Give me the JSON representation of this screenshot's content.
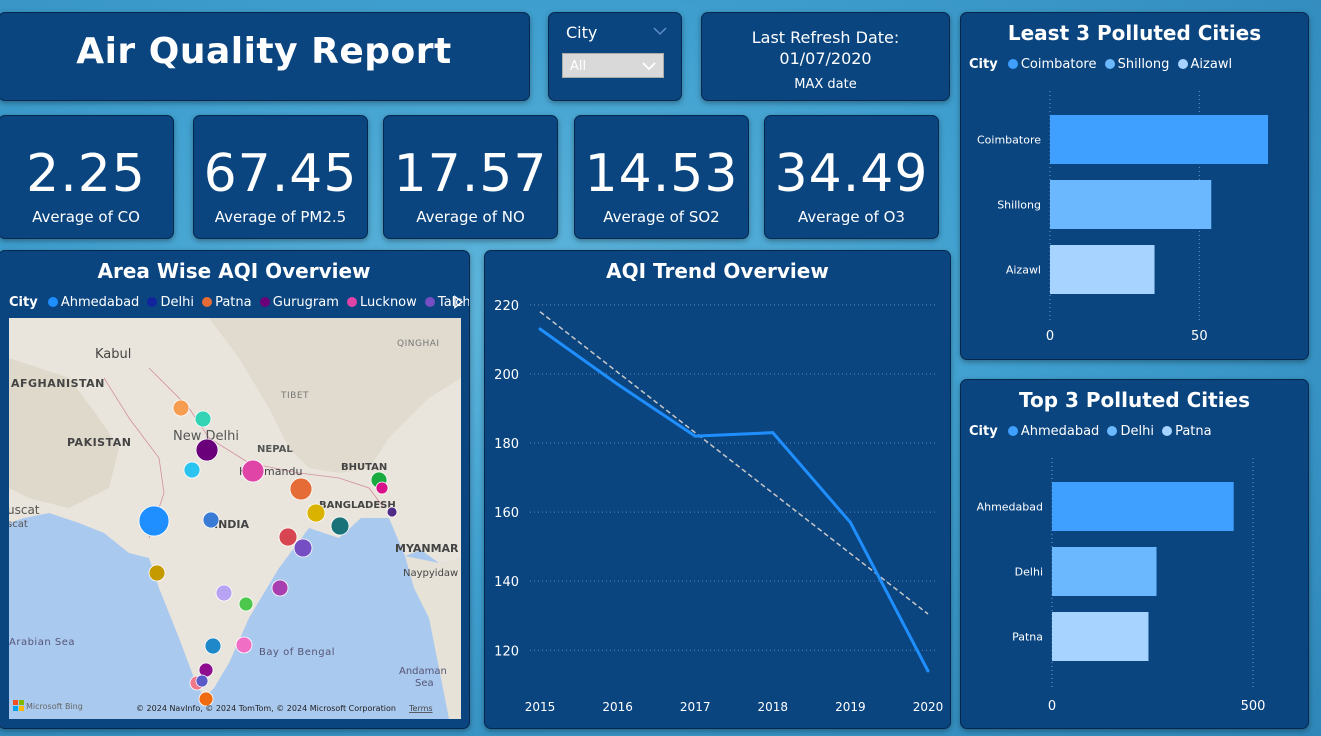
{
  "header": {
    "title": "Air Quality Report"
  },
  "slicer": {
    "label": "City",
    "value": "All"
  },
  "refresh": {
    "title": "Last Refresh Date:",
    "date": "01/07/2020",
    "sub": "MAX date"
  },
  "kpis": [
    {
      "value": "2.25",
      "label": "Average of CO"
    },
    {
      "value": "67.45",
      "label": "Average of PM2.5"
    },
    {
      "value": "17.57",
      "label": "Average of NO"
    },
    {
      "value": "14.53",
      "label": "Average of SO2"
    },
    {
      "value": "34.49",
      "label": "Average of O3"
    }
  ],
  "map_panel": {
    "title": "Area Wise AQI Overview",
    "legend_label": "City",
    "legend": [
      {
        "name": "Ahmedabad",
        "color": "#1f8fff"
      },
      {
        "name": "Delhi",
        "color": "#12239e"
      },
      {
        "name": "Patna",
        "color": "#e66c37"
      },
      {
        "name": "Gurugram",
        "color": "#6b007b"
      },
      {
        "name": "Lucknow",
        "color": "#e044a7"
      },
      {
        "name": "Talcher",
        "color": "#744ec2"
      }
    ],
    "map_labels": {
      "kabul": "Kabul",
      "afghanistan": "AFGHANISTAN",
      "pakistan": "PAKISTAN",
      "new_delhi": "New Delhi",
      "nepal": "NEPAL",
      "kathmandu": "Kathmandu",
      "tibet": "TIBET",
      "qinghai": "QINGHAI",
      "bhutan": "BHUTAN",
      "bangladesh": "BANGLADESH",
      "india": "INDIA",
      "myanmar": "MYANMAR",
      "naypyidaw": "Naypyidaw",
      "uscat1": "uscat",
      "uscat2": "scat",
      "arabian_sea": "Arabian Sea",
      "bay_of_bengal": "Bay of Bengal",
      "andaman_sea_1": "Andaman",
      "andaman_sea_2": "Sea",
      "bing": "Microsoft Bing",
      "copyright": "© 2024 NavInfo, © 2024 TomTom, © 2024 Microsoft Corporation",
      "terms": "Terms"
    }
  },
  "chart_data": [
    {
      "type": "line",
      "title": "AQI Trend Overview",
      "x": [
        "2015",
        "2016",
        "2017",
        "2018",
        "2019",
        "2020"
      ],
      "series": [
        {
          "values": [
            213,
            197,
            182,
            183,
            157,
            114
          ],
          "color": "#1f8fff"
        }
      ],
      "trendline": {
        "values": [
          218,
          200.5,
          183,
          165.5,
          148,
          130.5
        ],
        "style": "dashed",
        "color": "#c8c8c8"
      },
      "yticks": [
        120,
        140,
        160,
        180,
        200,
        220
      ],
      "ylim": [
        114,
        224
      ],
      "grid": true
    },
    {
      "type": "bar",
      "orientation": "horizontal",
      "title": "Least 3 Polluted Cities",
      "legend_label": "City",
      "categories": [
        "Coimbatore",
        "Shillong",
        "Aizawl"
      ],
      "values": [
        73,
        54,
        35
      ],
      "colors": [
        "#3fa0ff",
        "#6cb8ff",
        "#a6d3ff"
      ],
      "xticks": [
        0,
        50
      ],
      "xlim": [
        0,
        75
      ]
    },
    {
      "type": "bar",
      "orientation": "horizontal",
      "title": "Top 3 Polluted Cities",
      "legend_label": "City",
      "categories": [
        "Ahmedabad",
        "Delhi",
        "Patna"
      ],
      "values": [
        452,
        260,
        240
      ],
      "colors": [
        "#3fa0ff",
        "#6cb8ff",
        "#a6d3ff"
      ],
      "xticks": [
        0,
        500
      ],
      "xlim": [
        0,
        505
      ]
    }
  ]
}
